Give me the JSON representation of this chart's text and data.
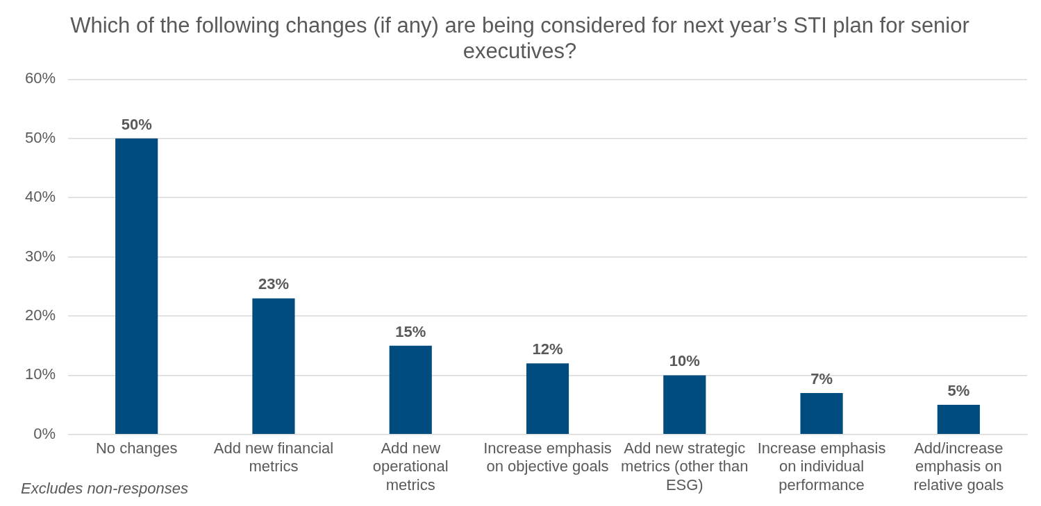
{
  "chart_data": {
    "type": "bar",
    "title": "Which of the following changes (if any) are being considered for next year’s STI plan for senior executives?",
    "categories": [
      "No changes",
      "Add new financial metrics",
      "Add new operational metrics",
      "Increase emphasis on objective goals",
      "Add new strategic metrics (other than ESG)",
      "Increase emphasis on individual performance",
      "Add/increase emphasis on relative goals"
    ],
    "values": [
      50,
      23,
      15,
      12,
      10,
      7,
      5
    ],
    "value_labels": [
      "50%",
      "23%",
      "15%",
      "12%",
      "10%",
      "7%",
      "5%"
    ],
    "color": "#004c7e",
    "ylim": [
      0,
      60
    ],
    "yticks": [
      {
        "value": 0,
        "label": "0%"
      },
      {
        "value": 10,
        "label": "10%"
      },
      {
        "value": 20,
        "label": "20%"
      },
      {
        "value": 30,
        "label": "30%"
      },
      {
        "value": 40,
        "label": "40%"
      },
      {
        "value": 50,
        "label": "50%"
      },
      {
        "value": 60,
        "label": "60%"
      }
    ],
    "grid": "y",
    "legend": false,
    "annotations": [
      "Excludes non-responses"
    ]
  }
}
